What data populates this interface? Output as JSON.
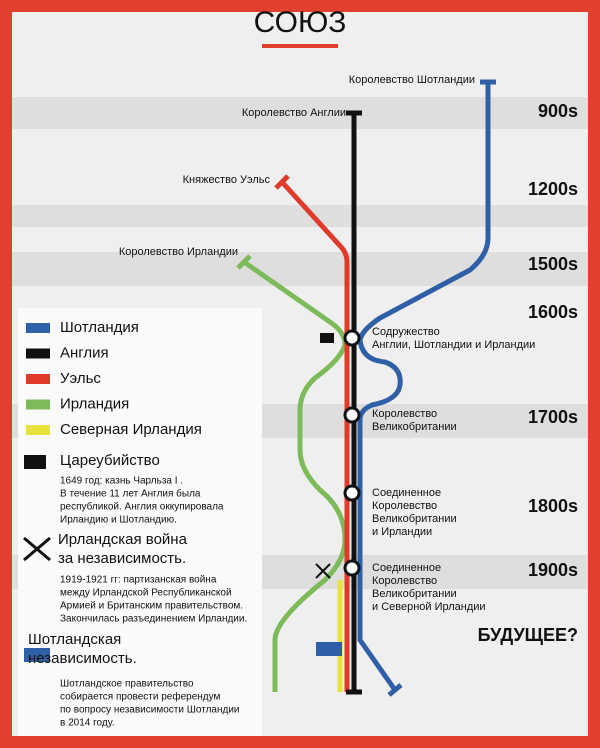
{
  "title": "СОЮЗ",
  "origins": [
    "Королевство Шотландии",
    "Королевство Англии",
    "Княжество Уэльс",
    "Королевство Ирландии"
  ],
  "eras": [
    "900s",
    "1200s",
    "1500s",
    "1600s",
    "1700s",
    "1800s",
    "1900s",
    "БУДУЩЕЕ?"
  ],
  "stations": [
    [
      "Содружество",
      "Англии, Шотландии и Ирландии"
    ],
    [
      "Королевство",
      "Великобритании"
    ],
    [
      "Соединенное",
      "Королевство",
      "Великобритании",
      "и Ирландии"
    ],
    [
      "Соединенное",
      "Королевство",
      "Великобритании",
      "и Северной Ирландии"
    ]
  ],
  "legend": [
    {
      "label": "Шотландия",
      "color": "#2f5fa7"
    },
    {
      "label": "Англия",
      "color": "#111111"
    },
    {
      "label": "Уэльс",
      "color": "#e03a2a"
    },
    {
      "label": "Ирландия",
      "color": "#7dbb5a"
    },
    {
      "label": "Северная Ирландия",
      "color": "#e8e23a"
    }
  ],
  "notes": [
    {
      "title": [
        "Цареубийство"
      ],
      "text": [
        "1649 год: казнь Чарльза I .",
        "В течение 11 лет Англия была",
        "республикой. Англия оккупировала",
        "Ирландию и Шотландию."
      ]
    },
    {
      "title": [
        "Ирландская война",
        "за независимость."
      ],
      "text": [
        "1919-1921 гг: партизанская война",
        "между Ирландской Республиканской",
        "Армией и Британским правительством.",
        "Закончилась разъединением Ирландии."
      ]
    },
    {
      "title": [
        "Шотландская",
        "независимость."
      ],
      "text": [
        "Шотландское правительство",
        "собирается провести референдум",
        "по вопросу независимости Шотландии",
        "в 2014 году."
      ]
    }
  ]
}
